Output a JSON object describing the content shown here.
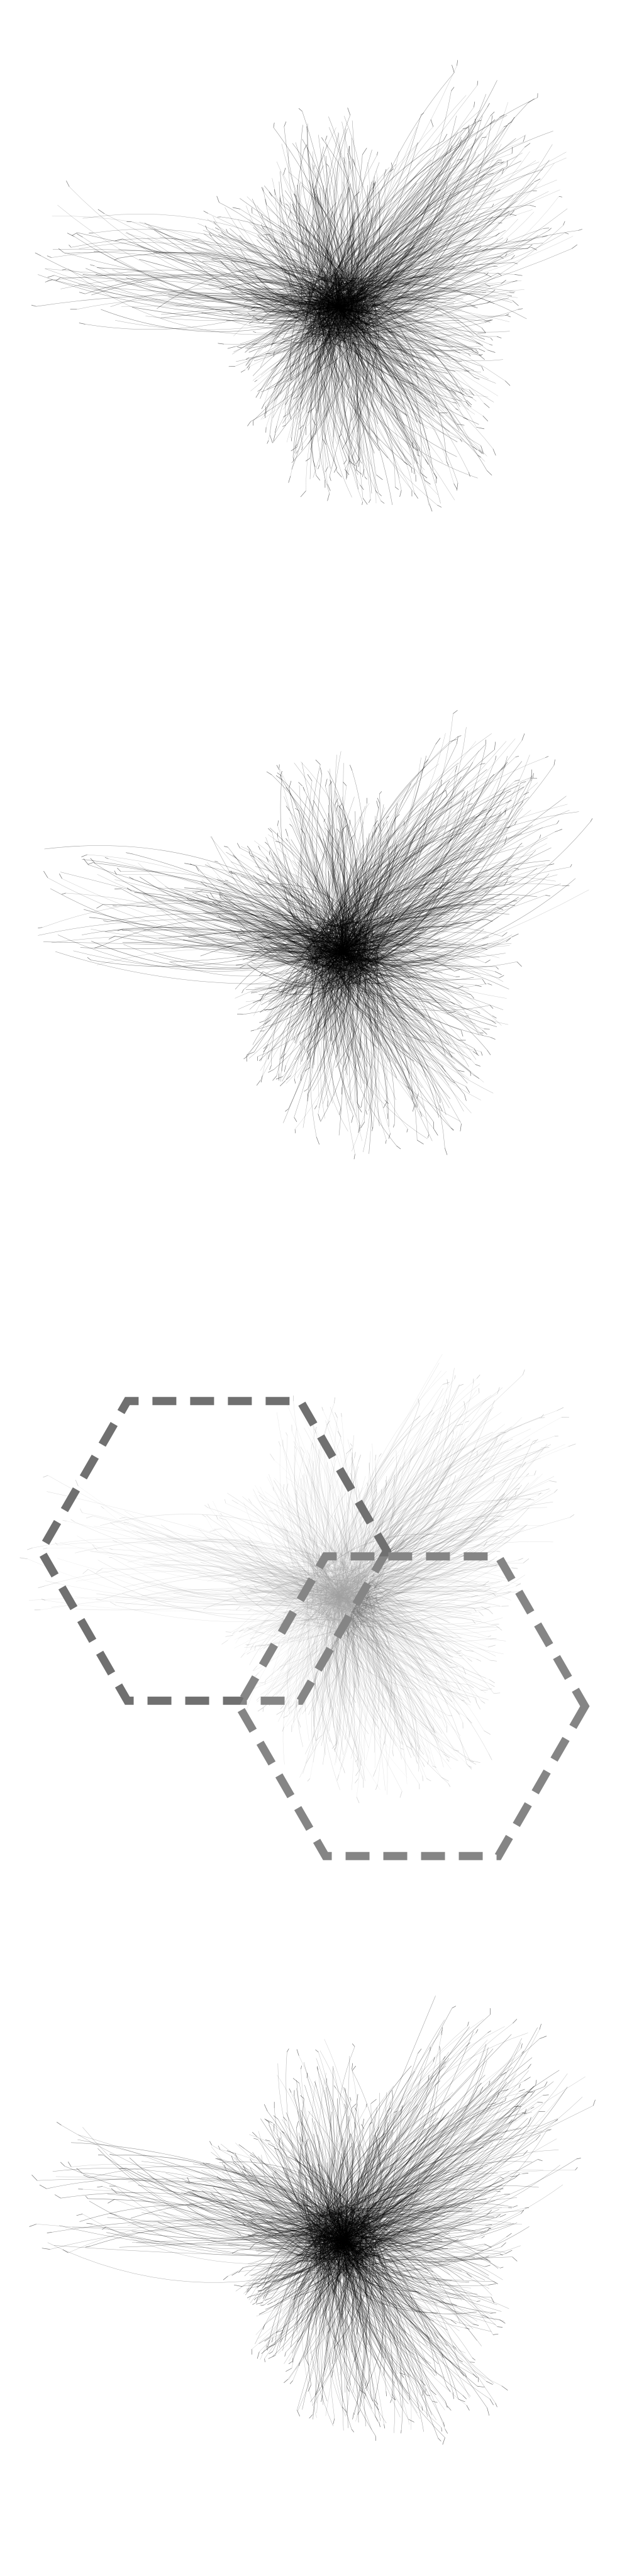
{
  "figure": {
    "panel_count": 4,
    "panels": [
      {
        "id": "panel-1",
        "variant": "full-network",
        "edge_color": "#000000",
        "edge_opacity": 0.55,
        "seed": 11
      },
      {
        "id": "panel-2",
        "variant": "full-network",
        "edge_color": "#000000",
        "edge_opacity": 0.55,
        "seed": 23
      },
      {
        "id": "panel-3",
        "variant": "faded-network-with-hexagons",
        "edge_color": "#555555",
        "edge_opacity": 0.32,
        "seed": 37,
        "hexagons": [
          {
            "name": "upper-left-hexagon",
            "stroke_color": "#707070"
          },
          {
            "name": "lower-right-hexagon",
            "stroke_color": "#858585"
          }
        ]
      },
      {
        "id": "panel-4",
        "variant": "full-network",
        "edge_color": "#000000",
        "edge_opacity": 0.55,
        "seed": 41
      }
    ],
    "background_color": "#ffffff"
  }
}
